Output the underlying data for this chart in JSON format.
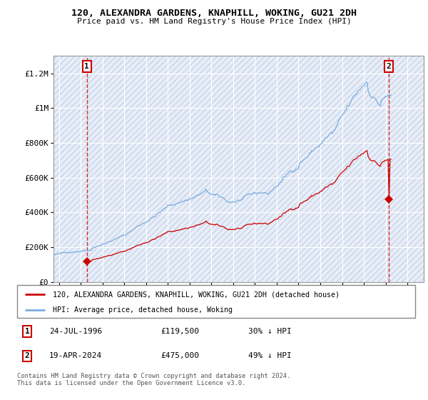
{
  "title_line1": "120, ALEXANDRA GARDENS, KNAPHILL, WOKING, GU21 2DH",
  "title_line2": "Price paid vs. HM Land Registry's House Price Index (HPI)",
  "legend_line1": "120, ALEXANDRA GARDENS, KNAPHILL, WOKING, GU21 2DH (detached house)",
  "legend_line2": "HPI: Average price, detached house, Woking",
  "footer": "Contains HM Land Registry data © Crown copyright and database right 2024.\nThis data is licensed under the Open Government Licence v3.0.",
  "transaction1_label": "1",
  "transaction1_date": "24-JUL-1996",
  "transaction1_price": "£119,500",
  "transaction1_hpi": "30% ↓ HPI",
  "transaction1_year": 1996.56,
  "transaction1_value": 119500,
  "transaction2_label": "2",
  "transaction2_date": "19-APR-2024",
  "transaction2_price": "£475,000",
  "transaction2_hpi": "49% ↓ HPI",
  "transaction2_year": 2024.3,
  "transaction2_value": 475000,
  "hpi_color": "#7aade0",
  "property_color": "#cc0000",
  "bg_color": "#e8eef8",
  "grid_color": "#ffffff",
  "ylim": [
    0,
    1300000
  ],
  "xlim_start": 1993.5,
  "xlim_end": 2027.5,
  "yticks": [
    0,
    200000,
    400000,
    600000,
    800000,
    1000000,
    1200000
  ],
  "ytick_labels": [
    "£0",
    "£200K",
    "£400K",
    "£600K",
    "£800K",
    "£1M",
    "£1.2M"
  ],
  "xticks": [
    1994,
    1996,
    1998,
    2000,
    2002,
    2004,
    2006,
    2008,
    2010,
    2012,
    2014,
    2016,
    2018,
    2020,
    2022,
    2024,
    2026
  ]
}
